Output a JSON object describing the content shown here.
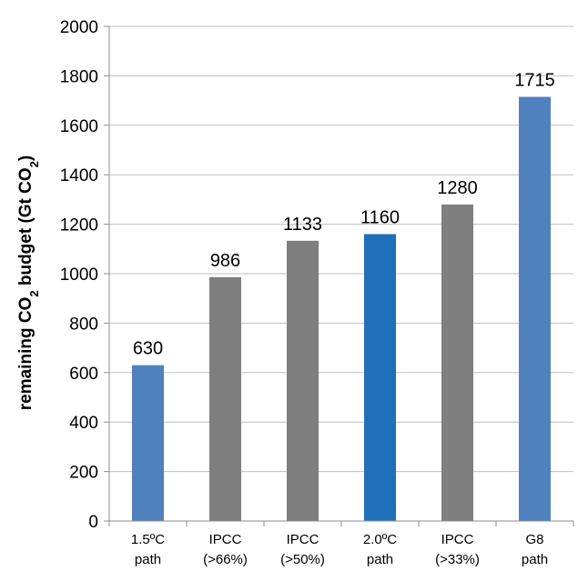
{
  "chart_data": {
    "type": "bar",
    "categories": [
      [
        "1.5ºC",
        "path"
      ],
      [
        "IPCC",
        "(>66%)"
      ],
      [
        "IPCC",
        "(>50%)"
      ],
      [
        "2.0ºC",
        "path"
      ],
      [
        "IPCC",
        "(>33%)"
      ],
      [
        "G8",
        "path"
      ]
    ],
    "values": [
      630,
      986,
      1133,
      1160,
      1280,
      1715
    ],
    "data_labels": [
      "630",
      "986",
      "1133",
      "1160",
      "1280",
      "1715"
    ],
    "bar_colors": [
      "#4f81bd",
      "#7f7f7f",
      "#7f7f7f",
      "#1f70b8",
      "#7f7f7f",
      "#4f81bd"
    ],
    "title": "",
    "xlabel": "",
    "ylabel": {
      "parts": [
        {
          "text": "remaining CO",
          "sub": false
        },
        {
          "text": "2",
          "sub": true
        },
        {
          "text": " budget (Gt CO",
          "sub": false
        },
        {
          "text": "2",
          "sub": true
        },
        {
          "text": ")",
          "sub": false
        }
      ]
    },
    "ylim": [
      0,
      2000
    ],
    "yticks": [
      0,
      200,
      400,
      600,
      800,
      1000,
      1200,
      1400,
      1600,
      1800,
      2000
    ],
    "grid": true,
    "legend": "none",
    "colors": {
      "gridline": "#bfbfbf",
      "axis": "#8c8c8c"
    }
  }
}
